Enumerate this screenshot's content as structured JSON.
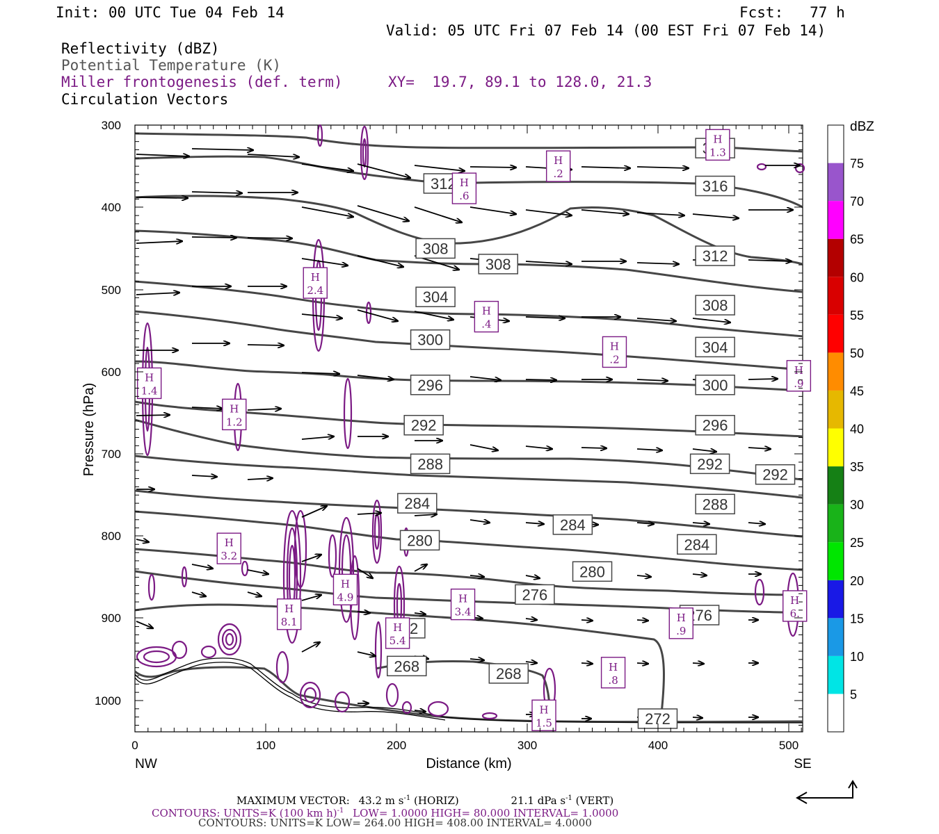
{
  "header": {
    "init": "Init: 00 UTC Tue 04 Feb 14",
    "fcst": "Fcst:   77 h",
    "valid": "Valid: 05 UTC Fri 07 Feb 14 (00 EST Fri 07 Feb 14)",
    "field1": "Reflectivity (dBZ)",
    "field2": "Potential Temperature (K)",
    "field3": "Miller frontogenesis (def. term)",
    "xy": "XY=  19.7, 89.1 to 128.0, 21.3",
    "field4": "Circulation Vectors"
  },
  "colors": {
    "theta": "#464646",
    "fronto": "#7b1a84",
    "vector": "#000000"
  },
  "footer": {
    "max_vector_label": "MAXIMUM VECTOR:",
    "max_vector_h": "43.2 m s",
    "max_vector_h_exp": "-1",
    "max_vector_h_unit": "(HORIZ)",
    "max_vector_v": "21.1 dPa s",
    "max_vector_v_exp": "-1",
    "max_vector_v_unit": "(VERT)",
    "contours1_a": "CONTOURS:  UNITS=K (100 km h)",
    "contours1_exp": "-1",
    "contours1_b": "LOW=  1.0000        HIGH=  80.000        INTERVAL=     1.0000",
    "contours2": "CONTOURS:  UNITS=K  LOW=   264.00         HIGH=   408.00        INTERVAL=     4.0000"
  },
  "chart_data": {
    "type": "contour-cross-section",
    "xlabel": "Distance (km)",
    "ylabel": "Pressure (hPa)",
    "xlim": [
      0,
      511
    ],
    "ylim": [
      1037,
      300
    ],
    "xticks": [
      0,
      100,
      200,
      300,
      400,
      500
    ],
    "yticks": [
      300,
      400,
      500,
      600,
      700,
      800,
      900,
      1000
    ],
    "x_endpoints": {
      "left": "NW",
      "right": "SE"
    },
    "colorbar": {
      "title": "dBZ",
      "levels": [
        5,
        10,
        15,
        20,
        25,
        30,
        35,
        40,
        45,
        50,
        55,
        60,
        65,
        70,
        75
      ],
      "colors": [
        "#ffffff",
        "#00e5e5",
        "#1a99e6",
        "#1919e6",
        "#00e600",
        "#19b319",
        "#158015",
        "#ffff00",
        "#e6b800",
        "#ff8c00",
        "#ff0000",
        "#d90000",
        "#b30000",
        "#ff00ff",
        "#9955cc",
        "#ffffff"
      ]
    },
    "theta_labels": [
      {
        "text": "320",
        "x": 444,
        "p": 328
      },
      {
        "text": "316",
        "x": 444,
        "p": 374
      },
      {
        "text": "312",
        "x": 236,
        "p": 371
      },
      {
        "text": "312",
        "x": 444,
        "p": 459
      },
      {
        "text": "308",
        "x": 230,
        "p": 450
      },
      {
        "text": "308",
        "x": 278,
        "p": 469
      },
      {
        "text": "308",
        "x": 444,
        "p": 519
      },
      {
        "text": "304",
        "x": 230,
        "p": 509
      },
      {
        "text": "304",
        "x": 444,
        "p": 570
      },
      {
        "text": "300",
        "x": 226,
        "p": 561
      },
      {
        "text": "300",
        "x": 444,
        "p": 616
      },
      {
        "text": "296",
        "x": 226,
        "p": 616
      },
      {
        "text": "296",
        "x": 444,
        "p": 665
      },
      {
        "text": "292",
        "x": 221,
        "p": 665
      },
      {
        "text": "292",
        "x": 440,
        "p": 712
      },
      {
        "text": "292",
        "x": 490,
        "p": 725
      },
      {
        "text": "288",
        "x": 226,
        "p": 712
      },
      {
        "text": "288",
        "x": 444,
        "p": 761
      },
      {
        "text": "284",
        "x": 216,
        "p": 760
      },
      {
        "text": "284",
        "x": 335,
        "p": 786
      },
      {
        "text": "284",
        "x": 430,
        "p": 810
      },
      {
        "text": "280",
        "x": 218,
        "p": 805
      },
      {
        "text": "280",
        "x": 350,
        "p": 843
      },
      {
        "text": "276",
        "x": 306,
        "p": 871
      },
      {
        "text": "276",
        "x": 432,
        "p": 896
      },
      {
        "text": "272",
        "x": 207,
        "p": 912
      },
      {
        "text": "272",
        "x": 400,
        "p": 1022
      },
      {
        "text": "268",
        "x": 286,
        "p": 967
      },
      {
        "text": "268",
        "x": 208,
        "p": 958
      }
    ],
    "fronto_maxima": [
      {
        "label": "H",
        "value": "1.3",
        "x": 446,
        "p": 324
      },
      {
        "label": "H",
        "value": ".2",
        "x": 324,
        "p": 350
      },
      {
        "label": "H",
        "value": ".6",
        "x": 252,
        "p": 377
      },
      {
        "label": "H",
        "value": "2.4",
        "x": 138,
        "p": 492
      },
      {
        "label": "H",
        "value": ".4",
        "x": 269,
        "p": 533
      },
      {
        "label": "H",
        "value": ".2",
        "x": 367,
        "p": 576
      },
      {
        "label": "H",
        "value": "1.4",
        "x": 11,
        "p": 614
      },
      {
        "label": "H",
        "value": ".9",
        "x": 508,
        "p": 605
      },
      {
        "label": "H",
        "value": "1.2",
        "x": 76,
        "p": 652
      },
      {
        "label": "H",
        "value": "3.2",
        "x": 72,
        "p": 815
      },
      {
        "label": "H",
        "value": "4.9",
        "x": 161,
        "p": 865
      },
      {
        "label": "H",
        "value": "3.4",
        "x": 251,
        "p": 883
      },
      {
        "label": "H",
        "value": "6.",
        "x": 505,
        "p": 885
      },
      {
        "label": "H",
        "value": "8.1",
        "x": 118,
        "p": 895
      },
      {
        "label": "H",
        "value": "5.4",
        "x": 201,
        "p": 918
      },
      {
        "label": "H",
        "value": ".9",
        "x": 418,
        "p": 906
      },
      {
        "label": "H",
        "value": ".8",
        "x": 366,
        "p": 966
      },
      {
        "label": "H",
        "value": "1.5",
        "x": 313,
        "p": 1018
      }
    ]
  }
}
